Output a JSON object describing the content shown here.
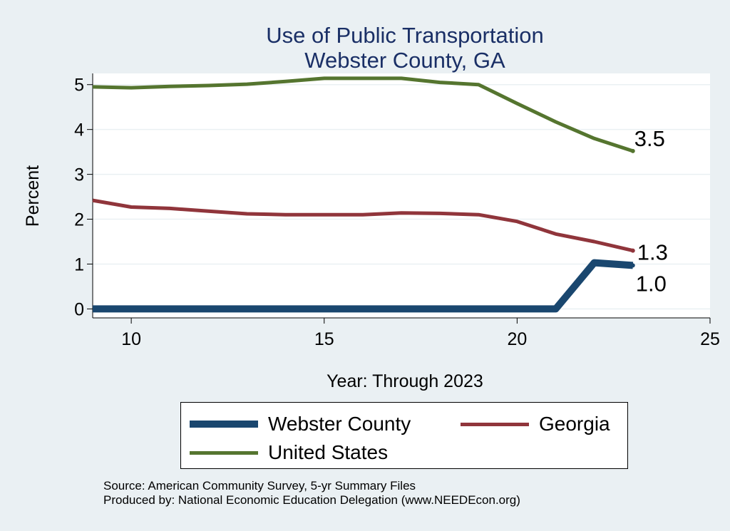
{
  "chart_data": {
    "type": "line",
    "title": [
      "Use of Public Transportation",
      "Webster County, GA"
    ],
    "xlabel": "Year: Through 2023",
    "ylabel": "Percent",
    "xlim": [
      9,
      25
    ],
    "ylim": [
      -0.2,
      5.25
    ],
    "xticks": [
      10,
      15,
      20,
      25
    ],
    "yticks": [
      0,
      1,
      2,
      3,
      4,
      5
    ],
    "grid": true,
    "series": [
      {
        "name": "Webster County",
        "color": "#1a476f",
        "x": [
          9,
          10,
          11,
          12,
          13,
          14,
          15,
          16,
          17,
          18,
          19,
          20,
          21,
          22,
          23
        ],
        "y": [
          0,
          0,
          0,
          0,
          0,
          0,
          0,
          0,
          0,
          0,
          0,
          0,
          0,
          1.03,
          0.97
        ],
        "end_label": "1.0"
      },
      {
        "name": "Georgia",
        "color": "#90353b",
        "x": [
          9,
          10,
          11,
          12,
          13,
          14,
          15,
          16,
          17,
          18,
          19,
          20,
          21,
          22,
          23
        ],
        "y": [
          2.42,
          2.27,
          2.24,
          2.18,
          2.12,
          2.1,
          2.1,
          2.1,
          2.14,
          2.13,
          2.1,
          1.95,
          1.67,
          1.5,
          1.3
        ],
        "end_label": "1.3"
      },
      {
        "name": "United States",
        "color": "#55752f",
        "x": [
          9,
          10,
          11,
          12,
          13,
          14,
          15,
          16,
          17,
          18,
          19,
          20,
          21,
          22,
          23
        ],
        "y": [
          4.95,
          4.93,
          4.96,
          4.98,
          5.01,
          5.07,
          5.14,
          5.14,
          5.14,
          5.05,
          5.0,
          4.58,
          4.17,
          3.8,
          3.52
        ],
        "end_label": "3.5"
      }
    ]
  },
  "legend": {
    "items": [
      {
        "label": "Webster County",
        "color": "#1a476f"
      },
      {
        "label": "Georgia",
        "color": "#90353b"
      },
      {
        "label": "United States",
        "color": "#55752f"
      }
    ]
  },
  "footer": {
    "source": "Source: American Community Survey, 5-yr Summary Files",
    "produced": "Produced by: National Economic Education Delegation (www.NEEDEcon.org)"
  }
}
